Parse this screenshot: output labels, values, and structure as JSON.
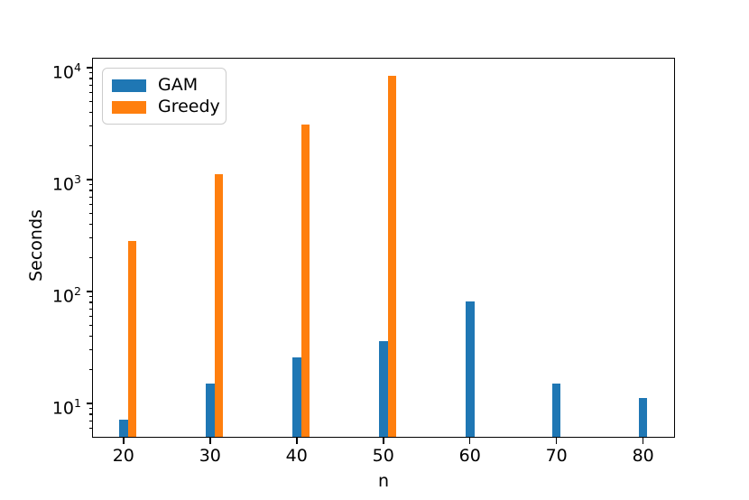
{
  "chart_data": {
    "type": "bar",
    "title": "",
    "xlabel": "n",
    "ylabel": "Seconds",
    "y_scale": "log",
    "grid": false,
    "x_ticks": [
      20,
      30,
      40,
      50,
      60,
      70,
      80
    ],
    "y_ticks": [
      10,
      100,
      1000,
      10000
    ],
    "y_tick_labels": [
      "10^1",
      "10^2",
      "10^3",
      "10^4"
    ],
    "xlim": [
      16.45,
      83.55
    ],
    "ylim": [
      5.05,
      12100
    ],
    "bar_width_units": 1,
    "legend": {
      "position": "upper-left",
      "labels": [
        "GAM",
        "Greedy"
      ]
    },
    "series": [
      {
        "name": "GAM",
        "color": "#1f77b4",
        "offset_units": 0,
        "x": [
          20,
          30,
          40,
          50,
          60,
          70,
          80
        ],
        "values": [
          7.2,
          15,
          26,
          36,
          82,
          15,
          11.2
        ]
      },
      {
        "name": "Greedy",
        "color": "#ff7f0e",
        "offset_units": 1,
        "x": [
          20,
          30,
          40,
          50
        ],
        "values": [
          285,
          1120,
          3100,
          8400
        ]
      }
    ]
  },
  "colors": {
    "spine": "#000000",
    "background": "#ffffff",
    "legend_border": "#cccccc"
  }
}
